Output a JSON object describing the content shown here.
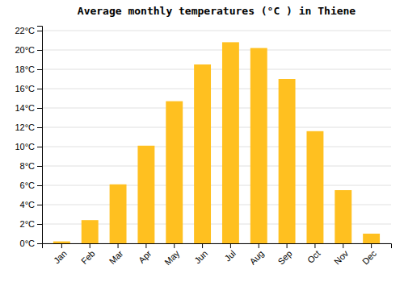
{
  "chart_data": {
    "type": "bar",
    "title": "Average monthly temperatures (°C ) in Thiene",
    "categories": [
      "Jan",
      "Feb",
      "Mar",
      "Apr",
      "May",
      "Jun",
      "Jul",
      "Aug",
      "Sep",
      "Oct",
      "Nov",
      "Dec"
    ],
    "values": [
      0.2,
      2.4,
      6.1,
      10.1,
      14.7,
      18.5,
      20.8,
      20.2,
      17.0,
      11.6,
      5.5,
      1.0
    ],
    "color": "#FFC020",
    "ylim": [
      0,
      22.5
    ],
    "yticks": [
      {
        "value": 0,
        "label": "0°C"
      },
      {
        "value": 2,
        "label": "2°C"
      },
      {
        "value": 4,
        "label": "4°C"
      },
      {
        "value": 6,
        "label": "6°C"
      },
      {
        "value": 8,
        "label": "8°C"
      },
      {
        "value": 10,
        "label": "10°C"
      },
      {
        "value": 12,
        "label": "12°C"
      },
      {
        "value": 14,
        "label": "14°C"
      },
      {
        "value": 16,
        "label": "16°C"
      },
      {
        "value": 18,
        "label": "18°C"
      },
      {
        "value": 20,
        "label": "20°C"
      },
      {
        "value": 22,
        "label": "22°C"
      }
    ],
    "grid": true
  }
}
